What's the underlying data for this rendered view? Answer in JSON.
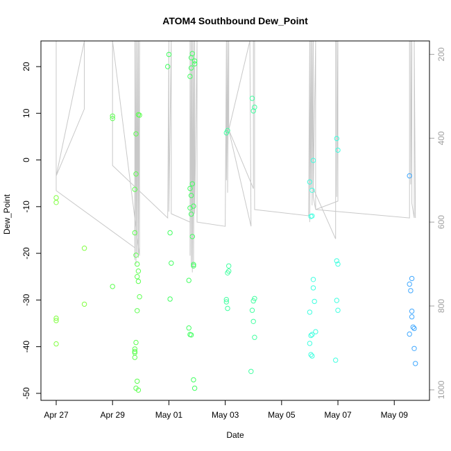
{
  "chart_data": {
    "type": "scatter",
    "title": "ATOM4 Southbound Dew_Point",
    "xlabel": "Date",
    "ylabel": "Dew_Point",
    "xlim": [
      "2015-04-26T11:00",
      "2015-05-10T06:00"
    ],
    "ylim": [
      -51.5,
      25.5
    ],
    "y2lim": [
      1025,
      168
    ],
    "x_ticks": [
      {
        "x": "2015-04-27",
        "label": "Apr 27"
      },
      {
        "x": "2015-04-29",
        "label": "Apr 29"
      },
      {
        "x": "2015-05-01",
        "label": "May 01"
      },
      {
        "x": "2015-05-03",
        "label": "May 03"
      },
      {
        "x": "2015-05-05",
        "label": "May 05"
      },
      {
        "x": "2015-05-07",
        "label": "May 07"
      },
      {
        "x": "2015-05-09",
        "label": "May 09"
      }
    ],
    "y_ticks": [
      {
        "v": 20,
        "label": "20"
      },
      {
        "v": 10,
        "label": "10"
      },
      {
        "v": 0,
        "label": "0"
      },
      {
        "v": -10,
        "label": "-10"
      },
      {
        "v": -20,
        "label": "-20"
      },
      {
        "v": -30,
        "label": "-30"
      },
      {
        "v": -40,
        "label": "-40"
      },
      {
        "v": -50,
        "label": "-50"
      }
    ],
    "y2_ticks": [
      {
        "v": 200,
        "label": "200"
      },
      {
        "v": 400,
        "label": "400"
      },
      {
        "v": 600,
        "label": "600"
      },
      {
        "v": 800,
        "label": "800"
      },
      {
        "v": 1000,
        "label": "1000"
      }
    ],
    "series": [
      {
        "color": "#80ff40",
        "points": [
          [
            "2015-04-27T00:00",
            -8.1
          ],
          [
            "2015-04-27T00:00",
            -9.1
          ],
          [
            "2015-04-27T00:00",
            -33.9
          ],
          [
            "2015-04-27T00:00",
            -34.4
          ],
          [
            "2015-04-27T00:00",
            -39.4
          ],
          [
            "2015-04-28T00:00",
            -18.9
          ],
          [
            "2015-04-28T00:00",
            -30.9
          ]
        ]
      },
      {
        "color": "#5cff50",
        "points": [
          [
            "2015-04-29T00:00",
            9.4
          ],
          [
            "2015-04-29T00:00",
            8.9
          ],
          [
            "2015-04-29T00:00",
            -27.1
          ],
          [
            "2015-04-29T20:00",
            5.6
          ],
          [
            "2015-04-29T20:00",
            -3.0
          ],
          [
            "2015-04-29T19:00",
            -6.3
          ],
          [
            "2015-04-29T19:00",
            -15.6
          ],
          [
            "2015-04-29T20:00",
            -20.4
          ],
          [
            "2015-04-29T21:00",
            -22.3
          ],
          [
            "2015-04-29T22:00",
            -23.8
          ],
          [
            "2015-04-29T21:00",
            -25.0
          ],
          [
            "2015-04-29T22:00",
            -26.0
          ],
          [
            "2015-04-29T23:00",
            -29.3
          ],
          [
            "2015-04-29T21:00",
            -32.3
          ],
          [
            "2015-04-29T20:00",
            -39.1
          ],
          [
            "2015-04-29T19:00",
            -40.5
          ],
          [
            "2015-04-29T19:00",
            -41.0
          ],
          [
            "2015-04-29T19:00",
            -41.3
          ],
          [
            "2015-04-29T19:00",
            -42.3
          ],
          [
            "2015-04-29T21:00",
            -47.4
          ],
          [
            "2015-04-29T20:00",
            -48.9
          ],
          [
            "2015-04-29T22:00",
            -49.3
          ],
          [
            "2015-04-29T22:00",
            9.7
          ],
          [
            "2015-04-29T23:00",
            9.6
          ]
        ]
      },
      {
        "color": "#40ff60",
        "points": [
          [
            "2015-05-01T00:00",
            22.6
          ],
          [
            "2015-04-30T23:00",
            20.0
          ],
          [
            "2015-05-01T01:00",
            -15.6
          ],
          [
            "2015-05-01T02:00",
            -22.1
          ],
          [
            "2015-05-01T01:00",
            -29.8
          ],
          [
            "2015-05-01T20:00",
            22.8
          ],
          [
            "2015-05-01T19:00",
            21.9
          ],
          [
            "2015-05-01T22:00",
            21.2
          ],
          [
            "2015-05-01T22:00",
            20.6
          ],
          [
            "2015-05-01T19:00",
            19.7
          ],
          [
            "2015-05-01T18:00",
            17.9
          ],
          [
            "2015-05-01T20:00",
            -5.1
          ],
          [
            "2015-05-01T18:00",
            -6.1
          ],
          [
            "2015-05-01T19:00",
            -7.6
          ],
          [
            "2015-05-01T21:00",
            -9.9
          ],
          [
            "2015-05-01T18:00",
            -10.3
          ],
          [
            "2015-05-01T19:00",
            -11.6
          ],
          [
            "2015-05-01T20:00",
            -16.4
          ],
          [
            "2015-05-01T21:00",
            -22.4
          ],
          [
            "2015-05-01T21:00",
            -22.7
          ],
          [
            "2015-05-01T17:00",
            -25.8
          ],
          [
            "2015-05-01T17:00",
            -36.0
          ],
          [
            "2015-05-01T18:00",
            -37.4
          ],
          [
            "2015-05-01T19:00",
            -37.5
          ],
          [
            "2015-05-01T21:00",
            -47.1
          ],
          [
            "2015-05-01T22:00",
            -48.9
          ]
        ]
      },
      {
        "color": "#40ffa0",
        "points": [
          [
            "2015-05-03T02:00",
            6.3
          ],
          [
            "2015-05-03T01:00",
            5.8
          ],
          [
            "2015-05-03T03:00",
            -22.7
          ],
          [
            "2015-05-03T03:00",
            -23.8
          ],
          [
            "2015-05-03T02:00",
            -24.2
          ],
          [
            "2015-05-03T01:00",
            -29.9
          ],
          [
            "2015-05-03T01:00",
            -30.4
          ],
          [
            "2015-05-03T02:00",
            -31.8
          ],
          [
            "2015-05-03T23:00",
            13.2
          ],
          [
            "2015-05-04T01:00",
            11.3
          ],
          [
            "2015-05-04T00:00",
            10.5
          ],
          [
            "2015-05-04T01:00",
            -29.7
          ],
          [
            "2015-05-04T00:00",
            -30.2
          ],
          [
            "2015-05-03T23:00",
            -32.2
          ],
          [
            "2015-05-04T00:00",
            -34.6
          ],
          [
            "2015-05-04T01:00",
            -38.0
          ],
          [
            "2015-05-03T22:00",
            -45.3
          ]
        ]
      },
      {
        "color": "#40ffe0",
        "points": [
          [
            "2015-05-06T00:00",
            -4.7
          ],
          [
            "2015-05-06T03:00",
            -0.1
          ],
          [
            "2015-05-06T02:00",
            -6.5
          ],
          [
            "2015-05-06T01:00",
            -12.1
          ],
          [
            "2015-05-06T02:00",
            -12.0
          ],
          [
            "2015-05-06T03:00",
            -25.6
          ],
          [
            "2015-05-06T03:00",
            -27.4
          ],
          [
            "2015-05-06T04:00",
            -30.3
          ],
          [
            "2015-05-06T00:00",
            -32.6
          ],
          [
            "2015-05-06T05:00",
            -36.8
          ],
          [
            "2015-05-06T02:00",
            -37.4
          ],
          [
            "2015-05-06T01:00",
            -37.6
          ],
          [
            "2015-05-06T00:00",
            -39.3
          ],
          [
            "2015-05-06T01:00",
            -41.7
          ],
          [
            "2015-05-06T02:00",
            -42.0
          ],
          [
            "2015-05-06T23:00",
            4.6
          ],
          [
            "2015-05-07T00:00",
            2.1
          ],
          [
            "2015-05-06T23:00",
            -21.6
          ],
          [
            "2015-05-07T00:00",
            -22.3
          ],
          [
            "2015-05-06T23:00",
            -30.1
          ],
          [
            "2015-05-07T00:00",
            -32.2
          ],
          [
            "2015-05-06T22:00",
            -42.9
          ]
        ]
      },
      {
        "color": "#40a8ff",
        "points": [
          [
            "2015-05-09T13:00",
            -3.4
          ],
          [
            "2015-05-09T15:00",
            -25.4
          ],
          [
            "2015-05-09T13:00",
            -26.6
          ],
          [
            "2015-05-09T14:00",
            -28.0
          ],
          [
            "2015-05-09T15:00",
            -32.4
          ],
          [
            "2015-05-09T15:00",
            -33.6
          ],
          [
            "2015-05-09T16:00",
            -35.8
          ],
          [
            "2015-05-09T17:00",
            -36.1
          ],
          [
            "2015-05-09T13:00",
            -37.3
          ],
          [
            "2015-05-09T17:00",
            -40.4
          ],
          [
            "2015-05-09T18:00",
            -43.6
          ]
        ]
      }
    ],
    "pressure_trace": {
      "color": "#c8c8c8",
      "points": [
        [
          "2015-04-27T00:00",
          168
        ],
        [
          "2015-04-27T00:00",
          490
        ],
        [
          "2015-04-28T00:00",
          330
        ],
        [
          "2015-04-28T00:00",
          168
        ],
        [
          "2015-04-28T00:00",
          168
        ],
        [
          "2015-04-27T00:00",
          490
        ],
        [
          "2015-04-27T00:00",
          525
        ],
        [
          "2015-04-29T19:00",
          661
        ],
        [
          "2015-04-29T19:00",
          168
        ],
        [
          "2015-04-29T19:00",
          690
        ],
        [
          "2015-04-29T20:00",
          168
        ],
        [
          "2015-04-29T20:00",
          700
        ],
        [
          "2015-04-29T21:00",
          168
        ],
        [
          "2015-04-29T21:00",
          675
        ],
        [
          "2015-04-29T22:00",
          168
        ],
        [
          "2015-04-29T22:00",
          685
        ],
        [
          "2015-04-29T23:00",
          168
        ],
        [
          "2015-04-29T23:00",
          680
        ],
        [
          "2015-04-29T00:00",
          168
        ],
        [
          "2015-04-29T00:00",
          465
        ],
        [
          "2015-04-30T23:00",
          590
        ],
        [
          "2015-05-01T00:00",
          168
        ],
        [
          "2015-05-01T00:00",
          575
        ],
        [
          "2015-05-01T02:00",
          168
        ],
        [
          "2015-05-01T02:00",
          580
        ],
        [
          "2015-05-01T18:00",
          600
        ],
        [
          "2015-05-01T18:00",
          168
        ],
        [
          "2015-05-01T18:00",
          680
        ],
        [
          "2015-05-01T19:00",
          168
        ],
        [
          "2015-05-01T19:00",
          700
        ],
        [
          "2015-05-01T20:00",
          168
        ],
        [
          "2015-05-01T20:00",
          720
        ],
        [
          "2015-05-01T21:00",
          168
        ],
        [
          "2015-05-01T21:00",
          710
        ],
        [
          "2015-05-01T22:00",
          168
        ],
        [
          "2015-05-01T22:00",
          580
        ],
        [
          "2015-05-02T00:00",
          168
        ],
        [
          "2015-05-02T00:00",
          600
        ],
        [
          "2015-05-03T00:00",
          610
        ],
        [
          "2015-05-03T01:00",
          168
        ],
        [
          "2015-05-03T01:00",
          500
        ],
        [
          "2015-05-03T02:00",
          168
        ],
        [
          "2015-05-03T02:00",
          530
        ],
        [
          "2015-05-03T03:00",
          168
        ],
        [
          "2015-05-03T03:00",
          380
        ],
        [
          "2015-05-03T21:00",
          168
        ],
        [
          "2015-05-03T22:00",
          610
        ],
        [
          "2015-05-03T03:00",
          380
        ],
        [
          "2015-05-04T00:00",
          520
        ],
        [
          "2015-05-04T00:00",
          168
        ],
        [
          "2015-05-04T01:00",
          168
        ],
        [
          "2015-05-04T01:00",
          510
        ],
        [
          "2015-05-04T01:00",
          168
        ],
        [
          "2015-05-04T01:00",
          570
        ],
        [
          "2015-05-05T23:00",
          585
        ],
        [
          "2015-05-06T00:00",
          168
        ],
        [
          "2015-05-06T00:00",
          600
        ],
        [
          "2015-05-06T01:00",
          168
        ],
        [
          "2015-05-06T01:00",
          520
        ],
        [
          "2015-05-06T02:00",
          168
        ],
        [
          "2015-05-06T02:00",
          560
        ],
        [
          "2015-05-06T03:00",
          168
        ],
        [
          "2015-05-06T03:00",
          540
        ],
        [
          "2015-05-06T05:00",
          570
        ],
        [
          "2015-05-06T05:00",
          168
        ],
        [
          "2015-05-06T03:00",
          520
        ],
        [
          "2015-05-06T22:00",
          640
        ],
        [
          "2015-05-06T22:00",
          168
        ],
        [
          "2015-05-06T23:00",
          168
        ],
        [
          "2015-05-06T23:00",
          540
        ],
        [
          "2015-05-07T00:00",
          168
        ],
        [
          "2015-05-07T00:00",
          550
        ],
        [
          "2015-05-06T05:00",
          570
        ],
        [
          "2015-05-09T13:00",
          590
        ],
        [
          "2015-05-09T13:00",
          168
        ],
        [
          "2015-05-09T14:00",
          168
        ],
        [
          "2015-05-09T14:00",
          510
        ],
        [
          "2015-05-09T15:00",
          168
        ],
        [
          "2015-05-09T15:00",
          555
        ],
        [
          "2015-05-09T17:00",
          590
        ],
        [
          "2015-05-09T17:00",
          168
        ],
        [
          "2015-05-09T18:00",
          590
        ]
      ]
    }
  }
}
